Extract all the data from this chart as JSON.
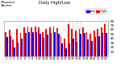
{
  "title_line1": "Daily High/Low",
  "background_color": "#ffffff",
  "bar_color_high": "#ff0000",
  "bar_color_low": "#0000ff",
  "legend_high": "High",
  "legend_low": "Low",
  "ylim": [
    0,
    80
  ],
  "yticks": [
    10,
    20,
    30,
    40,
    50,
    60,
    70,
    80
  ],
  "days": [
    "1",
    "2",
    "3",
    "4",
    "5",
    "6",
    "7",
    "8",
    "9",
    "10",
    "11",
    "12",
    "13",
    "14",
    "15",
    "16",
    "17",
    "18",
    "19",
    "20",
    "21",
    "22",
    "23",
    "24",
    "25",
    "26",
    "27",
    "28"
  ],
  "high": [
    55,
    60,
    38,
    62,
    52,
    65,
    67,
    66,
    67,
    65,
    55,
    62,
    65,
    68,
    64,
    45,
    40,
    72,
    62,
    58,
    62,
    65,
    55,
    50,
    58,
    62,
    65,
    72
  ],
  "low": [
    44,
    46,
    20,
    30,
    40,
    52,
    55,
    54,
    55,
    50,
    42,
    48,
    52,
    55,
    50,
    28,
    18,
    28,
    40,
    32,
    50,
    52,
    38,
    35,
    44,
    46,
    52,
    52
  ],
  "dotted_line_indices": [
    17,
    18,
    19,
    20
  ],
  "left_label_line1": "Milwaukee",
  "left_label_line2": "Weather",
  "bar_width": 0.38
}
